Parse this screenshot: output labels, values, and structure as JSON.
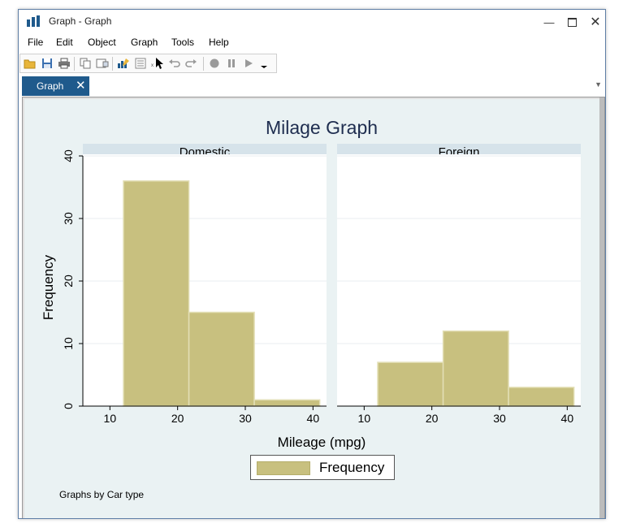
{
  "window": {
    "title": "Graph - Graph"
  },
  "menu": [
    "File",
    "Edit",
    "Object",
    "Graph",
    "Tools",
    "Help"
  ],
  "tab": {
    "label": "Graph"
  },
  "chart_data": {
    "type": "bar",
    "title": "Milage Graph",
    "xlabel": "Mileage (mpg)",
    "ylabel": "Frequency",
    "xlim": [
      6,
      42
    ],
    "ylim": [
      0,
      40
    ],
    "x_ticks": [
      10,
      20,
      30,
      40
    ],
    "y_ticks": [
      0,
      10,
      20,
      30,
      40
    ],
    "bar_color": "#c8c07f",
    "grid": true,
    "legend_position": "bottom-center",
    "legend": [
      "Frequency"
    ],
    "note": "Graphs by Car type",
    "panels": [
      {
        "name": "Domestic",
        "bins": [
          {
            "x0": 12,
            "x1": 21.67,
            "y": 36
          },
          {
            "x0": 21.67,
            "x1": 31.33,
            "y": 15
          },
          {
            "x0": 31.33,
            "x1": 41,
            "y": 1
          }
        ]
      },
      {
        "name": "Foreign",
        "bins": [
          {
            "x0": 12,
            "x1": 21.67,
            "y": 7
          },
          {
            "x0": 21.67,
            "x1": 31.33,
            "y": 12
          },
          {
            "x0": 31.33,
            "x1": 41,
            "y": 3
          }
        ]
      }
    ]
  }
}
